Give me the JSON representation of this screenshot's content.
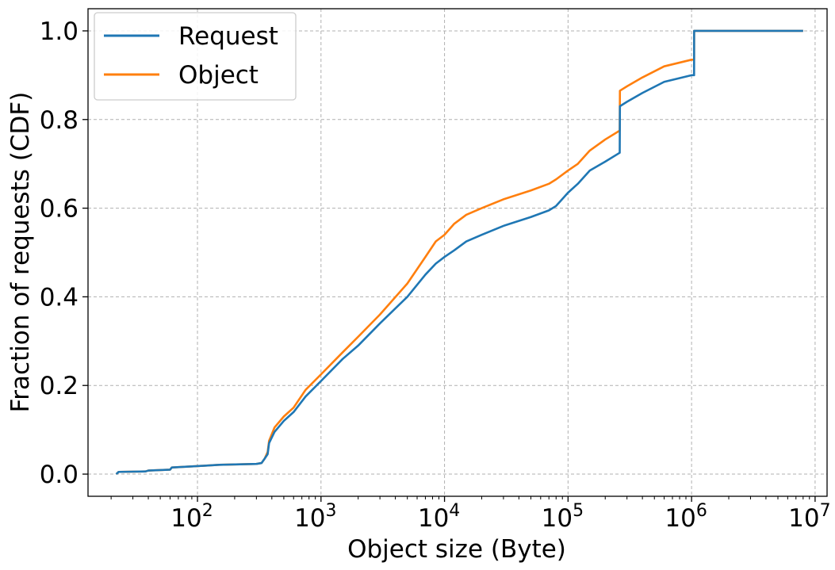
{
  "chart_data": {
    "type": "line",
    "title": "",
    "xlabel": "Object size (Byte)",
    "ylabel": "Fraction of requests (CDF)",
    "xscale": "log",
    "xlim": [
      13,
      12500000
    ],
    "ylim": [
      -0.05,
      1.05
    ],
    "grid": true,
    "legend_position": "top-left",
    "x_ticks": [
      {
        "base": "10",
        "exp": "2",
        "value": 100
      },
      {
        "base": "10",
        "exp": "3",
        "value": 1000
      },
      {
        "base": "10",
        "exp": "4",
        "value": 10000
      },
      {
        "base": "10",
        "exp": "5",
        "value": 100000
      },
      {
        "base": "10",
        "exp": "6",
        "value": 1000000
      },
      {
        "base": "10",
        "exp": "7",
        "value": 10000000
      }
    ],
    "y_ticks": [
      {
        "label": "0.0",
        "value": 0.0
      },
      {
        "label": "0.2",
        "value": 0.2
      },
      {
        "label": "0.4",
        "value": 0.4
      },
      {
        "label": "0.6",
        "value": 0.6
      },
      {
        "label": "0.8",
        "value": 0.8
      },
      {
        "label": "1.0",
        "value": 1.0
      }
    ],
    "series": [
      {
        "name": "Request",
        "color": "#1f77b4",
        "points": [
          [
            22,
            0.0
          ],
          [
            23,
            0.005
          ],
          [
            38,
            0.006
          ],
          [
            40,
            0.008
          ],
          [
            60,
            0.01
          ],
          [
            62,
            0.015
          ],
          [
            100,
            0.018
          ],
          [
            150,
            0.021
          ],
          [
            300,
            0.023
          ],
          [
            330,
            0.025
          ],
          [
            350,
            0.035
          ],
          [
            370,
            0.045
          ],
          [
            380,
            0.07
          ],
          [
            420,
            0.095
          ],
          [
            500,
            0.12
          ],
          [
            600,
            0.14
          ],
          [
            750,
            0.175
          ],
          [
            1000,
            0.21
          ],
          [
            1500,
            0.26
          ],
          [
            2000,
            0.29
          ],
          [
            3000,
            0.34
          ],
          [
            5000,
            0.4
          ],
          [
            7000,
            0.45
          ],
          [
            8500,
            0.475
          ],
          [
            10000,
            0.49
          ],
          [
            12000,
            0.505
          ],
          [
            15000,
            0.525
          ],
          [
            20000,
            0.54
          ],
          [
            30000,
            0.56
          ],
          [
            50000,
            0.58
          ],
          [
            70000,
            0.595
          ],
          [
            80000,
            0.605
          ],
          [
            100000,
            0.635
          ],
          [
            120000,
            0.655
          ],
          [
            150000,
            0.685
          ],
          [
            200000,
            0.705
          ],
          [
            262000,
            0.725
          ],
          [
            263000,
            0.83
          ],
          [
            300000,
            0.84
          ],
          [
            400000,
            0.86
          ],
          [
            600000,
            0.885
          ],
          [
            1000000,
            0.9
          ],
          [
            1048000,
            0.9
          ],
          [
            1049000,
            1.0
          ],
          [
            3000000,
            1.0
          ],
          [
            8000000,
            1.0
          ]
        ]
      },
      {
        "name": "Object",
        "color": "#ff7f0e",
        "points": [
          [
            22,
            0.0
          ],
          [
            23,
            0.005
          ],
          [
            38,
            0.006
          ],
          [
            40,
            0.008
          ],
          [
            60,
            0.01
          ],
          [
            62,
            0.015
          ],
          [
            100,
            0.018
          ],
          [
            150,
            0.021
          ],
          [
            300,
            0.023
          ],
          [
            330,
            0.025
          ],
          [
            350,
            0.035
          ],
          [
            370,
            0.05
          ],
          [
            380,
            0.075
          ],
          [
            420,
            0.105
          ],
          [
            500,
            0.13
          ],
          [
            600,
            0.15
          ],
          [
            750,
            0.19
          ],
          [
            1000,
            0.225
          ],
          [
            1500,
            0.275
          ],
          [
            2000,
            0.31
          ],
          [
            3000,
            0.36
          ],
          [
            5000,
            0.43
          ],
          [
            7000,
            0.49
          ],
          [
            8500,
            0.525
          ],
          [
            10000,
            0.54
          ],
          [
            12000,
            0.565
          ],
          [
            15000,
            0.585
          ],
          [
            20000,
            0.6
          ],
          [
            30000,
            0.62
          ],
          [
            50000,
            0.64
          ],
          [
            70000,
            0.655
          ],
          [
            80000,
            0.665
          ],
          [
            100000,
            0.685
          ],
          [
            120000,
            0.7
          ],
          [
            150000,
            0.73
          ],
          [
            200000,
            0.755
          ],
          [
            262000,
            0.775
          ],
          [
            263000,
            0.865
          ],
          [
            300000,
            0.875
          ],
          [
            400000,
            0.895
          ],
          [
            600000,
            0.92
          ],
          [
            1000000,
            0.935
          ],
          [
            1048000,
            0.935
          ],
          [
            1049000,
            1.0
          ],
          [
            3000000,
            1.0
          ],
          [
            8000000,
            1.0
          ]
        ]
      }
    ]
  }
}
